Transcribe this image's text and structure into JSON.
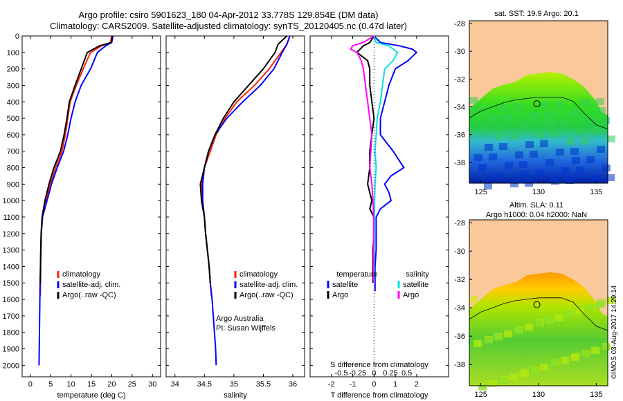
{
  "titles": {
    "line1": "Argo profile: csiro 5901623_180 04-Apr-2012 33.778S 129.854E (DM data)",
    "line2": "Climatology: CARS2009. Satellite-adjusted climatology: synTS_20120405.nc (0.47d later)"
  },
  "depth_ticks": [
    0,
    100,
    200,
    300,
    400,
    500,
    600,
    700,
    800,
    900,
    1000,
    1100,
    1200,
    1300,
    1400,
    1500,
    1600,
    1700,
    1800,
    1900,
    2000
  ],
  "colors": {
    "climatology": "#ff2200",
    "satellite": "#0000ff",
    "argo": "#000000",
    "cyan": "#00e0e0",
    "magenta": "#ff00ff",
    "land": "#f9c89b"
  },
  "chart_data": [
    {
      "type": "line",
      "xlabel": "temperature (deg C)",
      "xlim": [
        -2,
        32
      ],
      "ylim": [
        2070,
        0
      ],
      "xticks": [
        0,
        5,
        10,
        15,
        20,
        25,
        30
      ],
      "legend": [
        "climatology",
        "satellite-adj. clim.",
        "Argo(..raw -QC)"
      ],
      "series": [
        {
          "name": "climatology",
          "color": "#ff2200",
          "depth": [
            0,
            40,
            60,
            100,
            200,
            300,
            400,
            500,
            600,
            700,
            800,
            900,
            1000,
            1100,
            1200,
            1300,
            1400,
            1500,
            1580
          ],
          "values": [
            20.0,
            19.7,
            17.5,
            14.8,
            13.0,
            11.3,
            9.8,
            9.2,
            8.6,
            7.8,
            6.2,
            4.9,
            3.9,
            3.0,
            2.7,
            2.6,
            2.55,
            2.5,
            2.45
          ]
        },
        {
          "name": "satellite-adj. clim.",
          "color": "#0000ff",
          "depth": [
            0,
            40,
            60,
            100,
            200,
            300,
            400,
            500,
            600,
            700,
            800,
            900,
            1000,
            1100,
            1200,
            1300,
            1400,
            1500,
            1600,
            1700,
            1800,
            1900,
            2000
          ],
          "values": [
            20.3,
            20.0,
            18.5,
            16.5,
            14.8,
            12.5,
            11.0,
            10.0,
            9.2,
            8.2,
            6.6,
            5.2,
            4.1,
            3.0,
            2.7,
            2.6,
            2.5,
            2.4,
            2.35,
            2.3,
            2.25,
            2.2,
            2.15
          ]
        },
        {
          "name": "Argo(..raw -QC)",
          "color": "#000000",
          "depth": [
            0,
            40,
            60,
            100,
            200,
            300,
            400,
            500,
            600,
            700,
            800,
            900,
            1000,
            1100,
            1200,
            1300,
            1400,
            1500
          ],
          "values": [
            20.1,
            19.9,
            17.0,
            14.0,
            12.5,
            11.0,
            9.6,
            9.0,
            8.3,
            7.4,
            5.8,
            4.6,
            3.6,
            2.9,
            2.65,
            2.55,
            2.5,
            2.45
          ]
        }
      ]
    },
    {
      "type": "line",
      "xlabel": "salinity",
      "xlim": [
        33.85,
        36.2
      ],
      "ylim": [
        2070,
        0
      ],
      "xticks": [
        34,
        34.5,
        35,
        35.5,
        36
      ],
      "legend": [
        "climatology",
        "satellite-adj. clim.",
        "Argo(..raw -QC)"
      ],
      "annotation": [
        "Argo Australia",
        "PI: Susan Wijffels"
      ],
      "series": [
        {
          "name": "climatology",
          "color": "#ff2200",
          "depth": [
            0,
            50,
            100,
            200,
            300,
            400,
            500,
            600,
            700,
            800,
            900,
            1000,
            1100,
            1200,
            1300,
            1400,
            1500,
            1580
          ],
          "values": [
            35.95,
            35.9,
            35.8,
            35.6,
            35.35,
            35.05,
            34.85,
            34.7,
            34.6,
            34.5,
            34.45,
            34.45,
            34.5,
            34.52,
            34.55,
            34.58,
            34.6,
            34.62
          ]
        },
        {
          "name": "satellite-adj. clim.",
          "color": "#0000ff",
          "depth": [
            0,
            50,
            100,
            200,
            300,
            400,
            500,
            600,
            700,
            800,
            900,
            1000,
            1100,
            1200,
            1300,
            1400,
            1500,
            1600,
            1700,
            1800,
            1900,
            2000
          ],
          "values": [
            35.95,
            35.9,
            35.82,
            35.68,
            35.45,
            35.15,
            34.88,
            34.68,
            34.57,
            34.5,
            34.47,
            34.47,
            34.5,
            34.52,
            34.55,
            34.58,
            34.6,
            34.63,
            34.65,
            34.67,
            34.69,
            34.7
          ]
        },
        {
          "name": "Argo(..raw -QC)",
          "color": "#000000",
          "depth": [
            0,
            50,
            100,
            200,
            300,
            400,
            500,
            600,
            700,
            800,
            900,
            1000,
            1100,
            1200,
            1300,
            1400,
            1500
          ],
          "values": [
            35.9,
            35.75,
            35.7,
            35.5,
            35.25,
            35.0,
            34.82,
            34.68,
            34.57,
            34.5,
            34.43,
            34.45,
            34.5,
            34.52,
            34.55,
            34.58,
            34.6
          ]
        }
      ]
    },
    {
      "type": "line",
      "xlabel": "T difference from climatology",
      "xlabel2": "S difference from climatology",
      "xlim": [
        -3,
        3.5
      ],
      "ylim": [
        2070,
        0
      ],
      "xticks": [
        -2,
        -1,
        0,
        1,
        2
      ],
      "xticks_top": [
        "-0.5",
        "-0.25",
        "0",
        "0.25",
        "0.5"
      ],
      "legend_titles": [
        "temperature",
        "salinity"
      ],
      "legend": [
        "satellite",
        "Argo",
        "satellite",
        "Argo"
      ],
      "series": [
        {
          "name": "satellite",
          "group": "temperature",
          "color": "#0000ff",
          "depth": [
            0,
            40,
            60,
            80,
            100,
            150,
            200,
            300,
            400,
            500,
            600,
            700,
            800,
            850,
            900,
            950,
            1000,
            1050,
            1100,
            1200,
            1300,
            1400,
            1500,
            1550
          ],
          "values": [
            0,
            0.3,
            1.2,
            1.8,
            2.0,
            1.6,
            1.0,
            0.7,
            0.5,
            0.3,
            0.3,
            0.9,
            1.4,
            0.8,
            0.5,
            0.7,
            0.8,
            0.3,
            0.1,
            0.1,
            0.1,
            0.05,
            0.05,
            0.05
          ]
        },
        {
          "name": "Argo",
          "group": "temperature",
          "color": "#000000",
          "depth": [
            0,
            40,
            60,
            100,
            150,
            200,
            300,
            400,
            500,
            600,
            700,
            800,
            900,
            1000,
            1050,
            1100,
            1200,
            1300,
            1400,
            1500
          ],
          "values": [
            0,
            -0.2,
            -0.5,
            -0.8,
            -0.3,
            -0.2,
            -0.2,
            -0.1,
            0,
            -0.1,
            -0.2,
            -0.2,
            -0.3,
            -0.1,
            -0.2,
            0,
            0,
            -0.05,
            -0.05,
            -0.05
          ]
        },
        {
          "name": "satellite",
          "group": "salinity",
          "color": "#00e0e0",
          "depth": [
            0,
            40,
            60,
            100,
            150,
            200,
            300,
            400,
            500,
            600,
            700,
            800,
            900,
            1000,
            1100,
            1200,
            1300,
            1400,
            1500
          ],
          "values": [
            0,
            0.1,
            0.7,
            1.1,
            0.9,
            0.5,
            0.4,
            0.3,
            0.15,
            0.1,
            0.05,
            0.1,
            0.05,
            0.03,
            0.02,
            0.02,
            0.01,
            0.01,
            0.01
          ]
        },
        {
          "name": "Argo",
          "group": "salinity",
          "color": "#ff00ff",
          "depth": [
            0,
            40,
            60,
            80,
            100,
            150,
            200,
            300,
            400,
            500,
            600,
            700,
            800,
            900,
            1000,
            1100,
            1200,
            1300,
            1400,
            1500
          ],
          "values": [
            0,
            -0.5,
            -1.0,
            -1.1,
            -0.8,
            -0.6,
            -0.5,
            -0.4,
            -0.3,
            -0.2,
            -0.1,
            -0.15,
            -0.2,
            -0.1,
            -0.05,
            -0.02,
            -0.02,
            -0.02,
            -0.02,
            -0.02
          ]
        }
      ]
    },
    {
      "type": "heatmap",
      "title": "sat. SST: 19.9 Argo: 20.1",
      "xlim": [
        124,
        136
      ],
      "ylim": [
        -39.5,
        -27.8
      ],
      "xticks": [
        125,
        130,
        135
      ],
      "yticks": [
        -28,
        -30,
        -32,
        -34,
        -36,
        -38
      ],
      "marker": {
        "lon": 129.854,
        "lat": -33.778
      }
    },
    {
      "type": "heatmap",
      "title1": "Altim. SLA: 0.11",
      "title2": "Argo h1000: 0.04 h2000: NaN",
      "xlim": [
        124,
        136
      ],
      "ylim": [
        -39.5,
        -27.8
      ],
      "xticks": [
        125,
        130,
        135
      ],
      "yticks": [
        -28,
        -30,
        -32,
        -34,
        -36,
        -38
      ],
      "marker": {
        "lon": 129.854,
        "lat": -33.778
      }
    }
  ],
  "sidebar_text": "©IMOS 03-Aug-2017 14:29:14"
}
